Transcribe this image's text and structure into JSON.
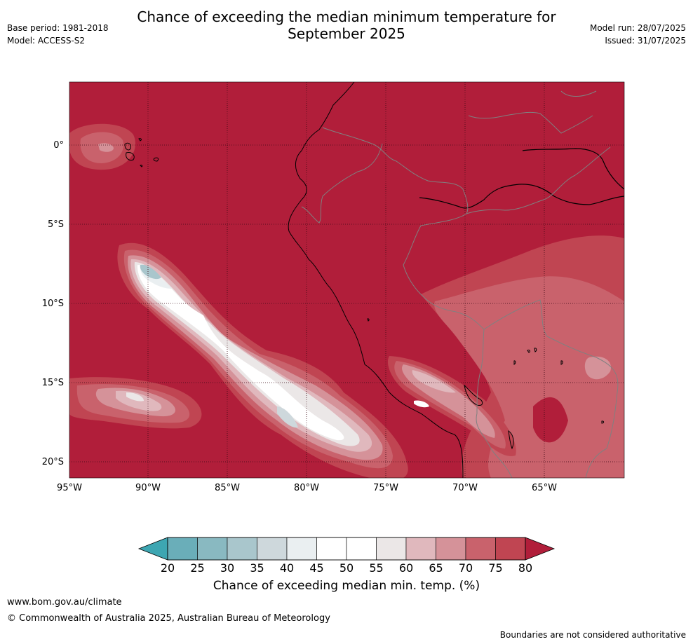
{
  "header": {
    "title_line1": "Chance of exceeding the median minimum temperature for",
    "title_line2": "September 2025",
    "base_period": "Base period: 1981-2018",
    "model": "Model: ACCESS-S2",
    "model_run": "Model run: 28/07/2025",
    "issued": "Issued: 31/07/2025"
  },
  "map": {
    "lon_ticks": [
      "95°W",
      "90°W",
      "85°W",
      "80°W",
      "75°W",
      "70°W",
      "65°W"
    ],
    "lat_ticks": [
      "0°",
      "5°S",
      "10°S",
      "15°S",
      "20°S"
    ],
    "dominant_category": "80+",
    "colors": {
      "c80": "#b11e3a",
      "c75": "#c04552",
      "c70": "#c9626c",
      "c65": "#d59299",
      "c60": "#e0b8bd",
      "c55": "#ebe7e7",
      "c50": "#ffffff",
      "c45": "#eaeff1",
      "c40": "#ced8dc",
      "c35": "#a9c6cc",
      "c30": "#89b9c1",
      "c25": "#6aaeb9",
      "c20": "#3da6b2",
      "coast": "#000000",
      "border": "#808080"
    }
  },
  "colorbar": {
    "ticks": [
      "20",
      "25",
      "30",
      "35",
      "40",
      "45",
      "50",
      "55",
      "60",
      "65",
      "70",
      "75",
      "80"
    ],
    "colors": [
      "#6aaeb9",
      "#89b9c1",
      "#a9c6cc",
      "#ced8dc",
      "#eaeff1",
      "#ffffff",
      "#ffffff",
      "#ebe7e7",
      "#e0b8bd",
      "#d59299",
      "#c9626c",
      "#c04552"
    ],
    "under_color": "#3da6b2",
    "over_color": "#b11e3a",
    "label": "Chance of exceeding median min. temp. (%)"
  },
  "footer": {
    "url": "www.bom.gov.au/climate",
    "copyright": "© Commonwealth of Australia 2025, Australian Bureau of Meteorology",
    "note": "Boundaries are not considered authoritative"
  }
}
